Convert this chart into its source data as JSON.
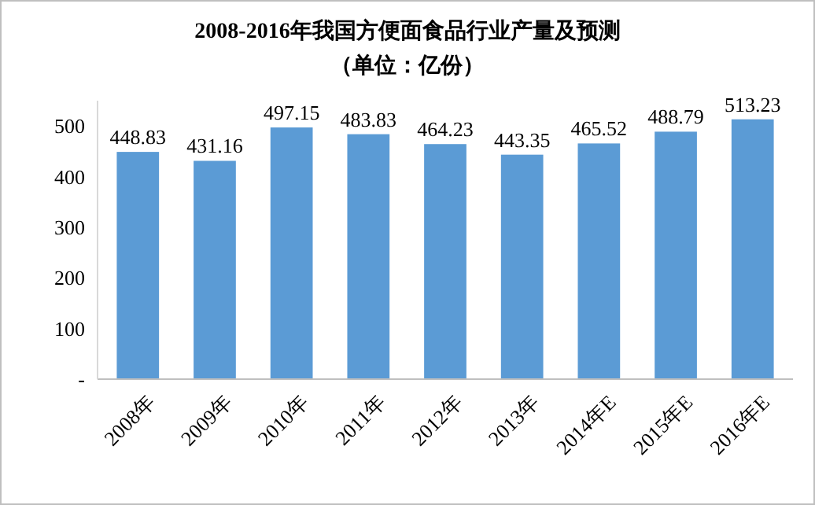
{
  "chart_data": {
    "type": "bar",
    "title": "2008-2016年我国方便面食品行业产量及预测",
    "subtitle": "（单位：亿份）",
    "categories": [
      "2008年",
      "2009年",
      "2010年",
      "2011年",
      "2012年",
      "2013年",
      "2014年E",
      "2015年E",
      "2016年E"
    ],
    "values": [
      448.83,
      431.16,
      497.15,
      483.83,
      464.23,
      443.35,
      465.52,
      488.79,
      513.23
    ],
    "color": "#5b9bd5",
    "ylim": [
      0,
      550
    ],
    "yticks": [
      {
        "value": 0,
        "label": "-"
      },
      100,
      200,
      300,
      400,
      500
    ],
    "data_labels": true,
    "grid": false
  }
}
